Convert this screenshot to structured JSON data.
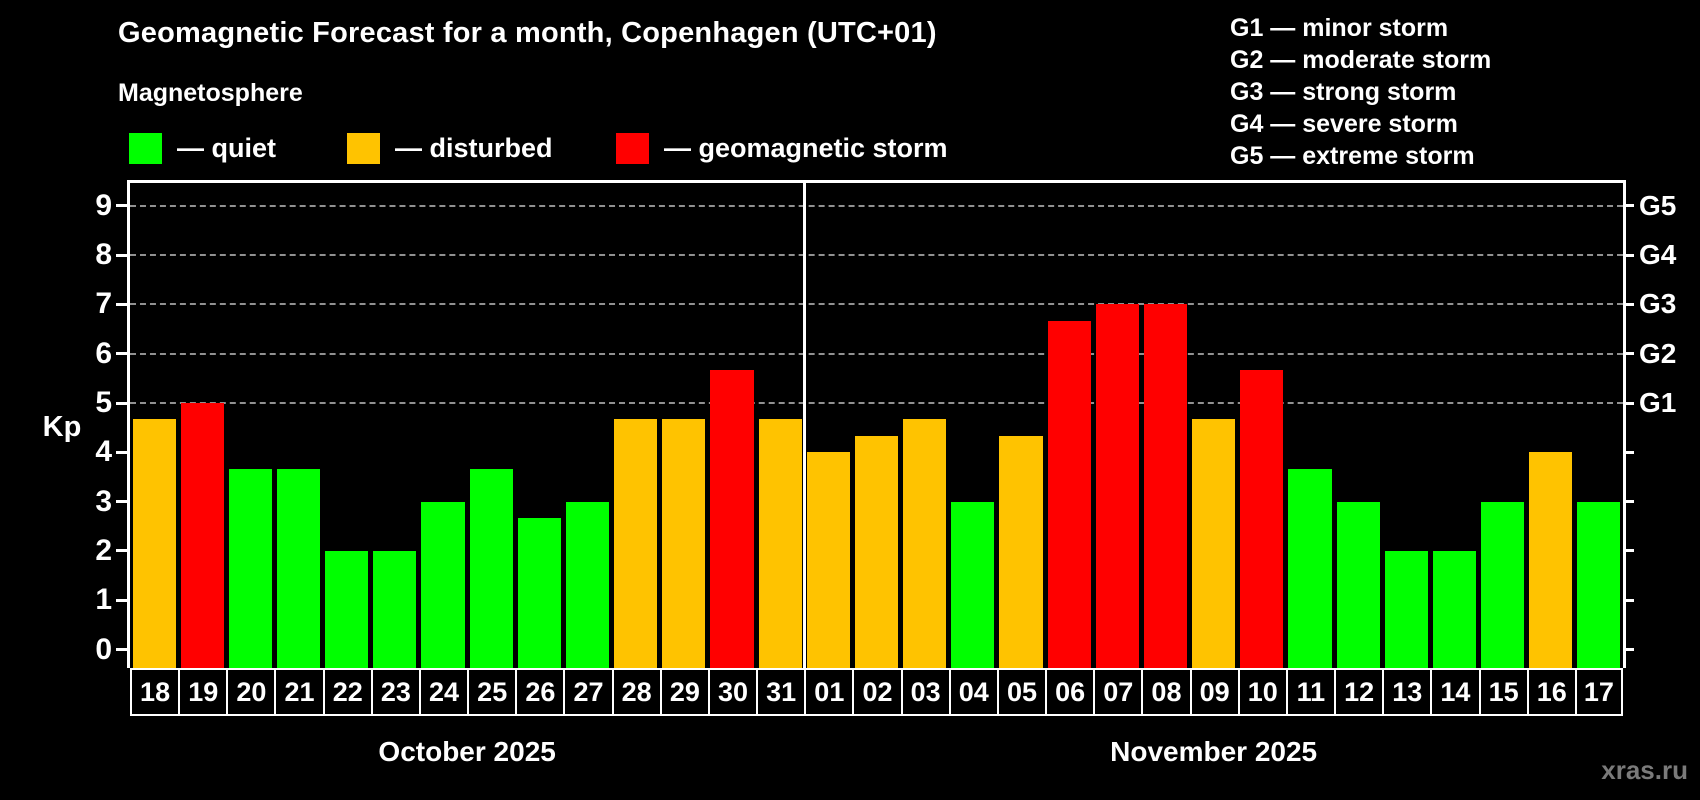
{
  "header": {
    "title": "Geomagnetic Forecast for a month, Copenhagen (UTC+01)",
    "subtitle": "Magnetosphere",
    "status_legend": [
      {
        "status": "quiet",
        "label": "— quiet",
        "color": "#00ff00"
      },
      {
        "status": "disturbed",
        "label": "— disturbed",
        "color": "#ffc300"
      },
      {
        "status": "storm",
        "label": "— geomagnetic storm",
        "color": "#ff0000"
      }
    ],
    "storm_scale_legend": [
      "G1 — minor storm",
      "G2 — moderate storm",
      "G3 — strong storm",
      "G4 — severe storm",
      "G5 — extreme storm"
    ]
  },
  "chart_data": {
    "type": "bar",
    "title": "Geomagnetic Forecast for a month, Copenhagen (UTC+01)",
    "ylabel": "Kp",
    "ylim": [
      -0.4,
      9.45
    ],
    "y_ticks": [
      0,
      1,
      2,
      3,
      4,
      5,
      6,
      7,
      8,
      9
    ],
    "gridlines_at": [
      5,
      6,
      7,
      8,
      9
    ],
    "right_axis_labels": {
      "5": "G1",
      "6": "G2",
      "7": "G3",
      "8": "G4",
      "9": "G5"
    },
    "status_colors": {
      "quiet": "#00ff00",
      "disturbed": "#ffc300",
      "storm": "#ff0000"
    },
    "legend_position": "top-left",
    "grid": "dashed horizontal lines at Kp 5-9 only",
    "months": [
      {
        "label": "October 2025",
        "days": [
          {
            "date": "18",
            "kp": 4.67,
            "status": "disturbed"
          },
          {
            "date": "19",
            "kp": 5.0,
            "status": "storm"
          },
          {
            "date": "20",
            "kp": 3.67,
            "status": "quiet"
          },
          {
            "date": "21",
            "kp": 3.67,
            "status": "quiet"
          },
          {
            "date": "22",
            "kp": 2.0,
            "status": "quiet"
          },
          {
            "date": "23",
            "kp": 2.0,
            "status": "quiet"
          },
          {
            "date": "24",
            "kp": 3.0,
            "status": "quiet"
          },
          {
            "date": "25",
            "kp": 3.67,
            "status": "quiet"
          },
          {
            "date": "26",
            "kp": 2.67,
            "status": "quiet"
          },
          {
            "date": "27",
            "kp": 3.0,
            "status": "quiet"
          },
          {
            "date": "28",
            "kp": 4.67,
            "status": "disturbed"
          },
          {
            "date": "29",
            "kp": 4.67,
            "status": "disturbed"
          },
          {
            "date": "30",
            "kp": 5.67,
            "status": "storm"
          },
          {
            "date": "31",
            "kp": 4.67,
            "status": "disturbed"
          }
        ]
      },
      {
        "label": "November 2025",
        "days": [
          {
            "date": "01",
            "kp": 4.0,
            "status": "disturbed"
          },
          {
            "date": "02",
            "kp": 4.33,
            "status": "disturbed"
          },
          {
            "date": "03",
            "kp": 4.67,
            "status": "disturbed"
          },
          {
            "date": "04",
            "kp": 3.0,
            "status": "quiet"
          },
          {
            "date": "05",
            "kp": 4.33,
            "status": "disturbed"
          },
          {
            "date": "06",
            "kp": 6.67,
            "status": "storm"
          },
          {
            "date": "07",
            "kp": 7.0,
            "status": "storm"
          },
          {
            "date": "08",
            "kp": 7.0,
            "status": "storm"
          },
          {
            "date": "09",
            "kp": 4.67,
            "status": "disturbed"
          },
          {
            "date": "10",
            "kp": 5.67,
            "status": "storm"
          },
          {
            "date": "11",
            "kp": 3.67,
            "status": "quiet"
          },
          {
            "date": "12",
            "kp": 3.0,
            "status": "quiet"
          },
          {
            "date": "13",
            "kp": 2.0,
            "status": "quiet"
          },
          {
            "date": "14",
            "kp": 2.0,
            "status": "quiet"
          },
          {
            "date": "15",
            "kp": 3.0,
            "status": "quiet"
          },
          {
            "date": "16",
            "kp": 4.0,
            "status": "disturbed"
          },
          {
            "date": "17",
            "kp": 3.0,
            "status": "quiet"
          }
        ]
      }
    ]
  },
  "footer": {
    "watermark": "xras.ru"
  }
}
